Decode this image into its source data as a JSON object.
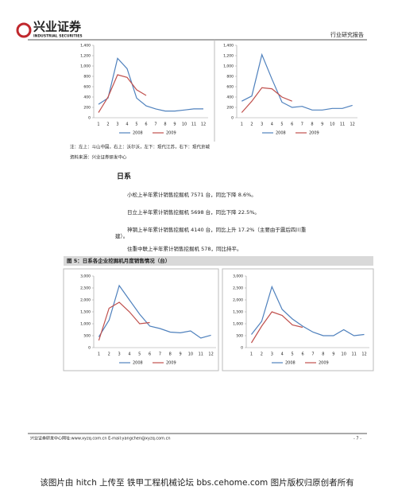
{
  "header": {
    "logo": "兴业证券",
    "logo_en": "INDUSTRIAL SECURITIES",
    "report_type": "行业研究报告"
  },
  "chart_data": [
    {
      "type": "line",
      "categories": [
        "1",
        "2",
        "3",
        "4",
        "5",
        "6",
        "7",
        "8",
        "9",
        "10",
        "11",
        "12"
      ],
      "ylim": [
        0,
        1400
      ],
      "yticks": [
        0,
        200,
        400,
        600,
        800,
        {
          "value": 1000,
          "label": "1,000"
        },
        {
          "value": 1200,
          "label": "1,200"
        },
        {
          "value": 1400,
          "label": "1,400"
        }
      ],
      "grid": false,
      "series": [
        {
          "name": "2008",
          "color": "#4f81bd",
          "values": [
            260,
            380,
            1150,
            950,
            380,
            230,
            170,
            130,
            130,
            150,
            170,
            170
          ]
        },
        {
          "name": "2009",
          "color": "#c0504d",
          "values": [
            100,
            400,
            830,
            780,
            540,
            430,
            null,
            null,
            null,
            null,
            null,
            null
          ]
        }
      ]
    },
    {
      "type": "line",
      "categories": [
        "1",
        "2",
        "3",
        "4",
        "5",
        "6",
        "7",
        "8",
        "9",
        "10",
        "11",
        "12"
      ],
      "ylim": [
        0,
        1400
      ],
      "yticks": [
        0,
        200,
        400,
        600,
        800,
        {
          "value": 1000,
          "label": "1,000"
        },
        {
          "value": 1200,
          "label": "1,200"
        },
        {
          "value": 1400,
          "label": "1,400"
        }
      ],
      "grid": false,
      "series": [
        {
          "name": "2008",
          "color": "#4f81bd",
          "values": [
            320,
            420,
            1220,
            750,
            300,
            200,
            220,
            150,
            150,
            180,
            180,
            240
          ]
        },
        {
          "name": "2009",
          "color": "#c0504d",
          "values": [
            100,
            320,
            580,
            560,
            400,
            320,
            null,
            null,
            null,
            null,
            null,
            null
          ]
        }
      ]
    },
    {
      "type": "line",
      "categories": [
        "1",
        "2",
        "3",
        "4",
        "5",
        "6",
        "7",
        "8",
        "9",
        "10",
        "11",
        "12"
      ],
      "ylim": [
        0,
        3000
      ],
      "yticks": [
        0,
        500,
        {
          "value": 1000,
          "label": "1,000"
        },
        {
          "value": 1500,
          "label": "1,500"
        },
        {
          "value": 2000,
          "label": "2,000"
        },
        {
          "value": 2500,
          "label": "2,500"
        },
        {
          "value": 3000,
          "label": "3,000"
        }
      ],
      "grid": false,
      "series": [
        {
          "name": "2008",
          "color": "#4f81bd",
          "values": [
            450,
            1150,
            2600,
            2000,
            1400,
            900,
            800,
            650,
            620,
            700,
            400,
            520
          ]
        },
        {
          "name": "2009",
          "color": "#c0504d",
          "values": [
            300,
            1650,
            1900,
            1500,
            1000,
            1050,
            null,
            null,
            null,
            null,
            null,
            null
          ]
        }
      ]
    },
    {
      "type": "line",
      "categories": [
        "1",
        "2",
        "3",
        "4",
        "5",
        "6",
        "7",
        "8",
        "9",
        "10",
        "11",
        "12"
      ],
      "ylim": [
        0,
        3000
      ],
      "yticks": [
        0,
        500,
        {
          "value": 1000,
          "label": "1,000"
        },
        {
          "value": 1500,
          "label": "1,500"
        },
        {
          "value": 2000,
          "label": "2,000"
        },
        {
          "value": 2500,
          "label": "2,500"
        },
        {
          "value": 3000,
          "label": "3,000"
        }
      ],
      "grid": false,
      "series": [
        {
          "name": "2008",
          "color": "#4f81bd",
          "values": [
            550,
            1100,
            2550,
            1600,
            1200,
            900,
            650,
            500,
            500,
            750,
            500,
            550
          ]
        },
        {
          "name": "2009",
          "color": "#c0504d",
          "values": [
            200,
            900,
            1500,
            1350,
            950,
            850,
            null,
            null,
            null,
            null,
            null,
            null
          ]
        }
      ]
    }
  ],
  "note": "注：左上：斗山中国，右上：沃尔沃，左下：现代江苏，右下：现代京城",
  "source": "资料来源：兴业证券研发中心",
  "section": {
    "heading": "日系",
    "paragraphs": [
      [
        "小松上半年累计销售挖掘机 7571 台，同比下降 8.6%。"
      ],
      [
        "日立上半年累计销售挖掘机 5698 台，同比下降 22.5%。"
      ],
      [
        "神钢上半年累计销售挖掘机 4140 台，同比上升 17.2%（主要由于震后四川重",
        "建）。"
      ],
      [
        "住重中联上半年累计销售挖掘机 578，同比持平。"
      ]
    ]
  },
  "figure_title": "图 5：日系各企业挖掘机月度销售情况（台）",
  "footer": {
    "contact": "兴业证券研发中心网址:www.xyzq.com.cn   E-mail:yangchen@xyzq.com.cn",
    "page": "- 7 -"
  },
  "watermark": "该图片由 hitch 上传至 铁甲工程机械论坛 bbs.cehome.com 图片版权归原创者所有"
}
